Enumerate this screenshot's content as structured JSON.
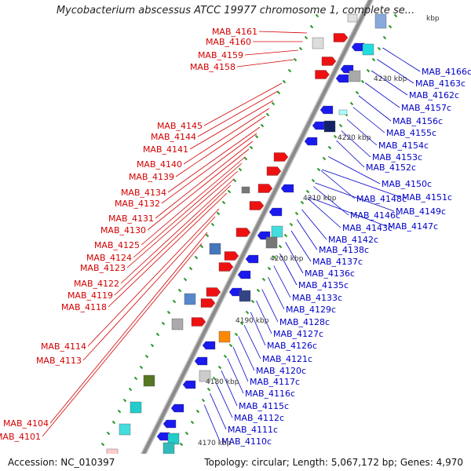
{
  "title": "Mycobacterium abscessus ATCC 19977 chromosome 1, complete se...",
  "footer": {
    "accession": "Accession: NC_010397",
    "topology": "Topology: circular; Length: 5,067,172 bp; Genes: 4,970"
  },
  "colors": {
    "backbone": "#8a8a8a",
    "forward_label": "#d40000",
    "reverse_label": "#0000c8",
    "forward_gene": "#ee1111",
    "reverse_gene": "#1a1aee",
    "tick": "#2a9a2a"
  },
  "kbp_marks": [
    "kbp",
    "4230 kbp",
    "4220 kbp",
    "4210 kbp",
    "4200 kbp",
    "4190 kbp",
    "4180 kbp",
    "4170 kbp"
  ],
  "forward_labels": [
    "MAB_4161",
    "MAB_4160",
    "MAB_4159",
    "MAB_4158",
    "MAB_4145",
    "MAB_4144",
    "MAB_4141",
    "MAB_4140",
    "MAB_4139",
    "MAB_4134",
    "MAB_4132",
    "MAB_4131",
    "MAB_4130",
    "MAB_4125",
    "MAB_4124",
    "MAB_4123",
    "MAB_4122",
    "MAB_4119",
    "MAB_4118",
    "MAB_4114",
    "MAB_4113",
    "MAB_4104",
    "MAB_4101"
  ],
  "reverse_labels": [
    "MAB_4166c",
    "MAB_4163c",
    "MAB_4162c",
    "MAB_4157c",
    "MAB_4156c",
    "MAB_4155c",
    "MAB_4154c",
    "MAB_4153c",
    "MAB_4152c",
    "MAB_4150c",
    "MAB_4151c",
    "MAB_4148c",
    "MAB_4149c",
    "MAB_4146c",
    "MAB_4147c",
    "MAB_4143c",
    "MAB_4142c",
    "MAB_4138c",
    "MAB_4137c",
    "MAB_4136c",
    "MAB_4135c",
    "MAB_4133c",
    "MAB_4129c",
    "MAB_4128c",
    "MAB_4127c",
    "MAB_4126c",
    "MAB_4121c",
    "MAB_4120c",
    "MAB_4117c",
    "MAB_4116c",
    "MAB_4115c",
    "MAB_4112c",
    "MAB_4111c",
    "MAB_4110c"
  ]
}
